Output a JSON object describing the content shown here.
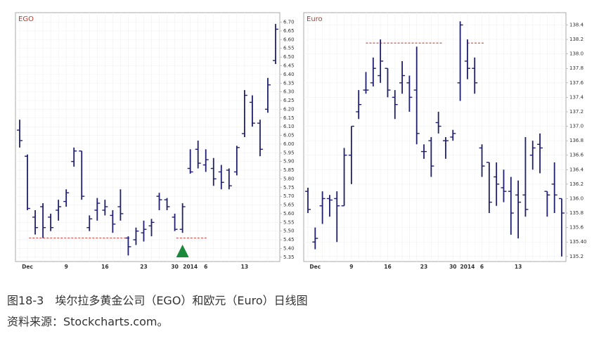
{
  "chart_data": [
    {
      "type": "ohlc",
      "title": "EGO",
      "title_color": "#c0392b",
      "color": "#1f1f6e",
      "grid": true,
      "categories": [
        null,
        "Dec",
        null,
        null,
        null,
        null,
        "9",
        null,
        null,
        null,
        null,
        "16",
        null,
        null,
        null,
        null,
        "23",
        null,
        null,
        null,
        "30",
        null,
        "2014",
        null,
        "6",
        null,
        null,
        null,
        null,
        "13",
        null,
        null,
        null,
        null
      ],
      "open": [
        6.08,
        5.93,
        5.58,
        5.64,
        5.58,
        5.62,
        5.67,
        5.9,
        5.96,
        5.52,
        5.62,
        5.62,
        5.59,
        5.64,
        5.46,
        5.45,
        5.49,
        5.53,
        5.7,
        5.68,
        5.58,
        5.51,
        5.86,
        5.97,
        5.88,
        5.86,
        5.84,
        5.85,
        5.84,
        6.06,
        6.24,
        6.12,
        6.2,
        6.48
      ],
      "high": [
        6.14,
        5.94,
        5.62,
        5.66,
        5.6,
        5.68,
        5.74,
        5.98,
        5.96,
        5.59,
        5.69,
        5.68,
        5.62,
        5.74,
        5.47,
        5.52,
        5.56,
        5.57,
        5.72,
        5.69,
        5.6,
        5.66,
        5.97,
        6.02,
        5.97,
        5.92,
        5.88,
        5.86,
        5.99,
        6.31,
        6.28,
        6.14,
        6.38,
        6.69
      ],
      "low": [
        5.98,
        5.62,
        5.48,
        5.46,
        5.5,
        5.56,
        5.64,
        5.87,
        5.68,
        5.5,
        5.56,
        5.59,
        5.49,
        5.56,
        5.36,
        5.42,
        5.44,
        5.47,
        5.62,
        5.62,
        5.5,
        5.49,
        5.83,
        5.86,
        5.84,
        5.76,
        5.74,
        5.74,
        5.82,
        6.04,
        6.1,
        5.93,
        6.18,
        6.46
      ],
      "close": [
        6.02,
        5.63,
        5.52,
        5.52,
        5.52,
        5.64,
        5.72,
        5.96,
        5.7,
        5.57,
        5.66,
        5.64,
        5.54,
        5.6,
        5.41,
        5.5,
        5.51,
        5.55,
        5.68,
        5.64,
        5.51,
        5.64,
        5.84,
        5.89,
        5.91,
        5.8,
        5.78,
        5.76,
        5.98,
        6.28,
        6.12,
        5.97,
        6.34,
        6.66
      ],
      "support_level": 5.46,
      "support_color": "#d9534f",
      "ylim": [
        5.325,
        6.755
      ],
      "yticks": [
        5.35,
        {
          "value": 5.4,
          "label": "5.40"
        },
        5.45,
        {
          "value": 5.5,
          "label": "5.50"
        },
        5.55,
        {
          "value": 5.6,
          "label": "5.60"
        },
        5.65,
        {
          "value": 5.7,
          "label": "5.70"
        },
        5.75,
        {
          "value": 5.8,
          "label": "5.80"
        },
        5.85,
        {
          "value": 5.9,
          "label": "5.90"
        },
        5.95,
        {
          "value": 6.0,
          "label": "6.00"
        },
        6.05,
        {
          "value": 6.1,
          "label": "6.10"
        },
        6.15,
        {
          "value": 6.2,
          "label": "6.20"
        },
        6.25,
        {
          "value": 6.3,
          "label": "6.30"
        },
        6.35,
        {
          "value": 6.4,
          "label": "6.40"
        },
        6.45,
        {
          "value": 6.5,
          "label": "6.50"
        },
        6.55,
        {
          "value": 6.6,
          "label": "6.60"
        },
        6.65,
        {
          "value": 6.7,
          "label": "6.70"
        }
      ]
    },
    {
      "type": "ohlc",
      "title": "Euro",
      "title_color": "#c0392b",
      "color": "#1f1f6e",
      "grid": true,
      "categories": [
        null,
        "Dec",
        null,
        null,
        null,
        null,
        "9",
        null,
        null,
        null,
        null,
        "16",
        null,
        null,
        null,
        null,
        "23",
        null,
        null,
        null,
        "30",
        null,
        "2014",
        null,
        "6",
        null,
        null,
        null,
        null,
        "13",
        null,
        null,
        null,
        null,
        null,
        null
      ],
      "open": [
        136.1,
        135.4,
        135.9,
        136.0,
        136.0,
        135.9,
        136.6,
        137.2,
        137.5,
        137.6,
        137.7,
        137.8,
        137.4,
        137.6,
        137.6,
        137.5,
        136.65,
        136.8,
        137.05,
        136.8,
        136.85,
        137.6,
        137.9,
        137.8,
        136.7,
        136.5,
        136.3,
        136.15,
        136.1,
        136.05,
        136.05,
        136.6,
        136.75,
        136.1,
        136.2,
        136.0
      ],
      "high": [
        136.15,
        135.6,
        136.1,
        136.05,
        136.1,
        136.7,
        137.0,
        137.5,
        137.75,
        137.95,
        138.2,
        137.8,
        137.5,
        137.9,
        137.7,
        138.1,
        136.75,
        136.85,
        137.2,
        136.85,
        136.95,
        138.45,
        138.2,
        137.95,
        136.75,
        136.5,
        136.5,
        136.4,
        136.3,
        136.25,
        136.85,
        136.8,
        136.9,
        136.1,
        136.5,
        136.0
      ],
      "low": [
        135.8,
        135.3,
        135.65,
        135.75,
        135.4,
        135.9,
        136.2,
        137.1,
        137.45,
        137.55,
        137.6,
        137.4,
        137.1,
        137.45,
        137.2,
        136.75,
        136.55,
        136.3,
        136.9,
        136.55,
        136.8,
        137.35,
        137.65,
        137.45,
        136.3,
        135.8,
        135.9,
        135.95,
        135.5,
        135.45,
        135.75,
        136.4,
        136.35,
        135.75,
        135.8,
        135.2
      ],
      "close": [
        135.85,
        135.45,
        136.0,
        135.98,
        135.9,
        136.6,
        137.0,
        137.3,
        137.5,
        137.8,
        137.9,
        137.5,
        137.3,
        137.7,
        137.4,
        136.9,
        136.65,
        136.45,
        137.0,
        136.8,
        136.9,
        138.4,
        137.8,
        137.6,
        136.45,
        135.95,
        136.2,
        136.1,
        135.8,
        135.95,
        135.85,
        136.7,
        136.7,
        136.05,
        136.05,
        135.8
      ],
      "support_level": 138.15,
      "support_color": "#d9534f",
      "ylim": [
        135.13,
        138.57
      ],
      "yticks": [
        135.2,
        {
          "value": 135.4,
          "label": "135.40"
        },
        135.6,
        135.8,
        {
          "value": 136,
          "label": "136.0"
        },
        136.2,
        136.4,
        136.6,
        136.8,
        {
          "value": 137,
          "label": "137.0"
        },
        137.2,
        137.4,
        137.6,
        137.8,
        {
          "value": 138,
          "label": "138.0"
        },
        138.2,
        138.4
      ]
    }
  ],
  "caption": {
    "title": "图18-3　埃尔拉多黄金公司（EGO）和欧元（Euro）日线图",
    "source": "资料来源：Stockcharts.com。"
  }
}
